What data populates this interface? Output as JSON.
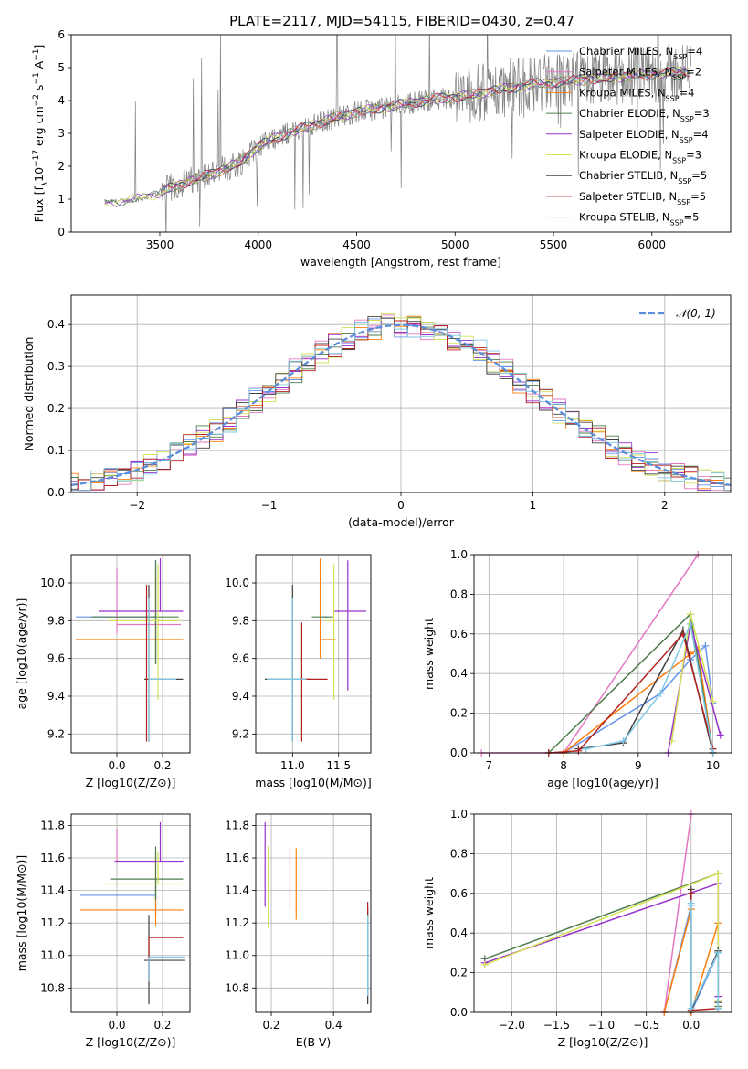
{
  "figure": {
    "title": "PLATE=2117, MJD=54115, FIBERID=0430, z=0.47"
  },
  "colors": {
    "Chabrier MILES": "#6495ed",
    "Salpeter MILES": "#e377c2",
    "Kroupa MILES": "#ff7f0e",
    "Chabrier ELODIE": "#4d7c4d",
    "Salpeter ELODIE": "#9932cc",
    "Kroupa ELODIE": "#d4e157",
    "Chabrier STELIB": "#404040",
    "Salpeter STELIB": "#b22222",
    "Kroupa STELIB": "#7ec8e3",
    "data_spectrum": "#808080",
    "gaussian": "#5b8dd9"
  },
  "chart_data": [
    {
      "id": "spectrum",
      "type": "line",
      "title": "PLATE=2117, MJD=54115, FIBERID=0430, z=0.47",
      "xlabel": "wavelength [Angstrom, rest frame]",
      "ylabel": "Flux [f_λ 10^-17 erg cm^-2 s^-1 A^-1]",
      "xlim": [
        3050,
        6400
      ],
      "ylim": [
        0,
        6
      ],
      "xticks": [
        3500,
        4000,
        4500,
        5000,
        5500,
        6000
      ],
      "yticks": [
        0,
        1,
        2,
        3,
        4,
        5,
        6
      ],
      "grid": false,
      "legend_position": "top-right",
      "legend": [
        {
          "label": "Chabrier MILES, N",
          "sub": "SSP",
          "value": "=4"
        },
        {
          "label": "Salpeter MILES, N",
          "sub": "SSP",
          "value": "=2"
        },
        {
          "label": "Kroupa MILES, N",
          "sub": "SSP",
          "value": "=4"
        },
        {
          "label": "Chabrier ELODIE, N",
          "sub": "SSP",
          "value": "=3"
        },
        {
          "label": "Salpeter ELODIE, N",
          "sub": "SSP",
          "value": "=4"
        },
        {
          "label": "Kroupa ELODIE, N",
          "sub": "SSP",
          "value": "=3"
        },
        {
          "label": "Chabrier STELIB, N",
          "sub": "SSP",
          "value": "=5"
        },
        {
          "label": "Salpeter STELIB, N",
          "sub": "SSP",
          "value": "=5"
        },
        {
          "label": "Kroupa STELIB, N",
          "sub": "SSP",
          "value": "=5"
        }
      ],
      "continuum": {
        "x": [
          3220,
          3300,
          3400,
          3500,
          3600,
          3700,
          3800,
          3900,
          4000,
          4100,
          4200,
          4300,
          4400,
          4500,
          4600,
          4700,
          4800,
          4900,
          5000,
          5100,
          5200,
          5300,
          5400,
          5500,
          5600,
          5700,
          5800,
          5900,
          6000,
          6100,
          6200
        ],
        "y": [
          0.9,
          0.95,
          1.0,
          1.2,
          1.45,
          1.65,
          1.85,
          2.1,
          2.6,
          2.9,
          3.1,
          3.3,
          3.5,
          3.65,
          3.75,
          3.85,
          3.95,
          4.05,
          4.1,
          4.2,
          4.3,
          4.4,
          4.5,
          4.55,
          4.6,
          4.65,
          4.7,
          4.75,
          4.8,
          4.85,
          4.9
        ]
      },
      "spectrum_noise_amplitude": 0.35
    },
    {
      "id": "residuals",
      "type": "line",
      "xlabel": "(data-model)/error",
      "ylabel": "Normed distribution",
      "xlim": [
        -2.5,
        2.5
      ],
      "ylim": [
        0,
        0.47
      ],
      "xticks": [
        -2,
        -1,
        0,
        1,
        2
      ],
      "yticks": [
        0.0,
        0.1,
        0.2,
        0.3,
        0.4
      ],
      "grid": true,
      "legend_position": "top-right",
      "legend": [
        {
          "label": "𝒩(0, 1)"
        }
      ],
      "histogram_bin_width": 0.1,
      "histogram_series_count": 9
    },
    {
      "id": "age_vs_Z",
      "type": "scatter",
      "xlabel": "Z [log10(Z/Z⊙)]",
      "ylabel": "age  [log10(age/yr)]",
      "xlim": [
        -0.2,
        0.32
      ],
      "ylim": [
        9.1,
        10.15
      ],
      "xticks": [
        0.0,
        0.2
      ],
      "yticks": [
        9.2,
        9.4,
        9.6,
        9.8,
        10.0
      ],
      "grid": true,
      "points": [
        {
          "model": "Chabrier MILES",
          "x": 0.17,
          "xerr": [
            0.35,
            0.0
          ],
          "y": 9.82,
          "yerr": [
            0.25,
            0.3
          ]
        },
        {
          "model": "Salpeter MILES",
          "x": 0.0,
          "xerr": [
            0.0,
            0.28
          ],
          "y": 9.78,
          "yerr": [
            0.05,
            0.3
          ]
        },
        {
          "model": "Kroupa MILES",
          "x": 0.17,
          "xerr": [
            0.35,
            0.12
          ],
          "y": 9.7,
          "yerr": [
            0.1,
            0.35
          ]
        },
        {
          "model": "Chabrier ELODIE",
          "x": 0.17,
          "xerr": [
            0.28,
            0.1
          ],
          "y": 9.82,
          "yerr": [
            0.25,
            0.3
          ]
        },
        {
          "model": "Salpeter ELODIE",
          "x": 0.19,
          "xerr": [
            0.27,
            0.1
          ],
          "y": 9.85,
          "yerr": [
            0.0,
            0.28
          ]
        },
        {
          "model": "Kroupa ELODIE",
          "x": 0.18,
          "xerr": [
            0.22,
            0.1
          ],
          "y": 9.8,
          "yerr": [
            0.42,
            0.3
          ]
        },
        {
          "model": "Chabrier STELIB",
          "x": 0.14,
          "xerr": [
            0.02,
            0.15
          ],
          "y": 9.49,
          "yerr": [
            0.33,
            0.5
          ]
        },
        {
          "model": "Salpeter STELIB",
          "x": 0.13,
          "xerr": [
            0.0,
            0.02
          ],
          "y": 9.49,
          "yerr": [
            0.33,
            0.5
          ]
        },
        {
          "model": "Kroupa STELIB",
          "x": 0.14,
          "xerr": [
            0.0,
            0.12
          ],
          "y": 9.49,
          "yerr": [
            0.33,
            0.43
          ]
        }
      ]
    },
    {
      "id": "age_vs_mass",
      "type": "scatter",
      "xlabel": "mass [log10(M/M⊙)]",
      "ylabel": "",
      "xlim": [
        10.6,
        11.85
      ],
      "ylim": [
        9.1,
        10.15
      ],
      "xticks": [
        11.0,
        11.5
      ],
      "yticks": [
        9.2,
        9.4,
        9.6,
        9.8,
        10.0
      ],
      "grid": true,
      "points": [
        {
          "model": "Chabrier MILES",
          "x": 11.38,
          "xerr": [
            0.05,
            0.0
          ],
          "y": 9.82,
          "yerr": [
            0.0,
            0.0
          ]
        },
        {
          "model": "Salpeter MILES",
          "x": 11.38,
          "xerr": [
            0.0,
            0.0
          ],
          "y": 9.82,
          "yerr": [
            0.0,
            0.0
          ]
        },
        {
          "model": "Kroupa MILES",
          "x": 11.3,
          "xerr": [
            0.0,
            0.17
          ],
          "y": 9.7,
          "yerr": [
            0.1,
            0.43
          ]
        },
        {
          "model": "Chabrier ELODIE",
          "x": 11.38,
          "xerr": [
            0.17,
            0.06
          ],
          "y": 9.82,
          "yerr": [
            0.0,
            0.0
          ]
        },
        {
          "model": "Salpeter ELODIE",
          "x": 11.6,
          "xerr": [
            0.15,
            0.2
          ],
          "y": 9.85,
          "yerr": [
            0.42,
            0.27
          ]
        },
        {
          "model": "Kroupa ELODIE",
          "x": 11.45,
          "xerr": [
            0.1,
            0.0
          ],
          "y": 9.8,
          "yerr": [
            0.42,
            0.3
          ]
        },
        {
          "model": "Chabrier STELIB",
          "x": 11.0,
          "xerr": [
            0.3,
            0.2
          ],
          "y": 9.49,
          "yerr": [
            0.33,
            0.5
          ]
        },
        {
          "model": "Salpeter STELIB",
          "x": 11.1,
          "xerr": [
            0.0,
            0.28
          ],
          "y": 9.49,
          "yerr": [
            0.33,
            0.3
          ]
        },
        {
          "model": "Kroupa STELIB",
          "x": 11.0,
          "xerr": [
            0.28,
            0.15
          ],
          "y": 9.49,
          "yerr": [
            0.33,
            0.43
          ]
        }
      ]
    },
    {
      "id": "mass_weight_vs_age",
      "type": "line",
      "xlabel": "age  [log10(age/yr)]",
      "ylabel": "mass weight",
      "xlim": [
        6.8,
        10.25
      ],
      "ylim": [
        0,
        1.0
      ],
      "xticks": [
        7,
        8,
        9,
        10
      ],
      "yticks": [
        0.0,
        0.2,
        0.4,
        0.6,
        0.8,
        1.0
      ],
      "grid": true,
      "series": [
        {
          "model": "Chabrier MILES",
          "x": [
            8.0,
            9.3,
            9.7,
            9.9,
            10.0
          ],
          "y": [
            0.0,
            0.3,
            0.47,
            0.54,
            0.25
          ]
        },
        {
          "model": "Salpeter MILES",
          "x": [
            6.9,
            8.0,
            9.8
          ],
          "y": [
            0.0,
            0.0,
            1.0
          ]
        },
        {
          "model": "Kroupa MILES",
          "x": [
            8.0,
            9.7,
            9.8,
            10.0
          ],
          "y": [
            0.0,
            0.5,
            0.52,
            0.0
          ]
        },
        {
          "model": "Chabrier ELODIE",
          "x": [
            7.8,
            9.7,
            10.0
          ],
          "y": [
            0.0,
            0.7,
            0.0
          ]
        },
        {
          "model": "Salpeter ELODIE",
          "x": [
            9.4,
            9.7,
            10.1
          ],
          "y": [
            0.0,
            0.65,
            0.09
          ]
        },
        {
          "model": "Kroupa ELODIE",
          "x": [
            9.45,
            9.7,
            10.0
          ],
          "y": [
            0.06,
            0.7,
            0.26
          ]
        },
        {
          "model": "Chabrier STELIB",
          "x": [
            8.2,
            8.8,
            9.6,
            10.0
          ],
          "y": [
            0.02,
            0.05,
            0.62,
            0.0
          ]
        },
        {
          "model": "Salpeter STELIB",
          "x": [
            7.8,
            8.2,
            9.6,
            10.0
          ],
          "y": [
            0.0,
            0.01,
            0.6,
            0.02
          ]
        },
        {
          "model": "Kroupa STELIB",
          "x": [
            8.3,
            8.8,
            9.3,
            9.7,
            10.0
          ],
          "y": [
            0.02,
            0.06,
            0.3,
            0.65,
            0.0
          ]
        }
      ]
    },
    {
      "id": "mass_vs_Z",
      "type": "scatter",
      "xlabel": "Z [log10(Z/Z⊙)]",
      "ylabel": "mass [log10(M/M⊙)]",
      "xlim": [
        -0.2,
        0.32
      ],
      "ylim": [
        10.65,
        11.87
      ],
      "xticks": [
        0.0,
        0.2
      ],
      "yticks": [
        10.8,
        11.0,
        11.2,
        11.4,
        11.6,
        11.8
      ],
      "grid": true,
      "points": [
        {
          "model": "Chabrier MILES",
          "x": 0.17,
          "xerr": [
            0.33,
            0.0
          ],
          "y": 11.37,
          "yerr": [
            0.13,
            0.1
          ]
        },
        {
          "model": "Salpeter MILES",
          "x": 0.0,
          "xerr": [
            0.0,
            0.0
          ],
          "y": 11.58,
          "yerr": [
            0.0,
            0.2
          ]
        },
        {
          "model": "Kroupa MILES",
          "x": 0.17,
          "xerr": [
            0.33,
            0.12
          ],
          "y": 11.28,
          "yerr": [
            0.1,
            0.36
          ]
        },
        {
          "model": "Chabrier ELODIE",
          "x": 0.17,
          "xerr": [
            0.2,
            0.12
          ],
          "y": 11.47,
          "yerr": [
            0.13,
            0.2
          ]
        },
        {
          "model": "Salpeter ELODIE",
          "x": 0.19,
          "xerr": [
            0.2,
            0.1
          ],
          "y": 11.58,
          "yerr": [
            0.0,
            0.24
          ]
        },
        {
          "model": "Kroupa ELODIE",
          "x": 0.18,
          "xerr": [
            0.23,
            0.1
          ],
          "y": 11.44,
          "yerr": [
            0.0,
            0.2
          ]
        },
        {
          "model": "Chabrier STELIB",
          "x": 0.14,
          "xerr": [
            0.02,
            0.16
          ],
          "y": 10.97,
          "yerr": [
            0.27,
            0.28
          ]
        },
        {
          "model": "Salpeter STELIB",
          "x": 0.14,
          "xerr": [
            0.0,
            0.15
          ],
          "y": 11.11,
          "yerr": [
            0.27,
            0.0
          ]
        },
        {
          "model": "Kroupa STELIB",
          "x": 0.14,
          "xerr": [
            0.0,
            0.16
          ],
          "y": 10.99,
          "yerr": [
            0.15,
            0.0
          ]
        }
      ]
    },
    {
      "id": "mass_vs_ebv",
      "type": "scatter",
      "xlabel": "E(B-V)",
      "ylabel": "",
      "xlim": [
        0.15,
        0.52
      ],
      "ylim": [
        10.65,
        11.87
      ],
      "xticks": [
        0.2,
        0.4
      ],
      "yticks": [
        10.8,
        11.0,
        11.2,
        11.4,
        11.6,
        11.8
      ],
      "grid": true,
      "points": [
        {
          "model": "Chabrier MILES",
          "x": 0.51,
          "xerr": [
            0,
            0
          ],
          "y": 11.0,
          "yerr": [
            0.3,
            0.3
          ]
        },
        {
          "model": "Salpeter MILES",
          "x": 0.26,
          "xerr": [
            0,
            0
          ],
          "y": 11.45,
          "yerr": [
            0.15,
            0.22
          ]
        },
        {
          "model": "Kroupa MILES",
          "x": 0.28,
          "xerr": [
            0,
            0
          ],
          "y": 11.44,
          "yerr": [
            0.22,
            0.22
          ]
        },
        {
          "model": "Chabrier ELODIE",
          "x": 0.19,
          "xerr": [
            0,
            0
          ],
          "y": 11.4,
          "yerr": [
            0.22,
            0.27
          ]
        },
        {
          "model": "Salpeter ELODIE",
          "x": 0.18,
          "xerr": [
            0,
            0
          ],
          "y": 11.55,
          "yerr": [
            0.25,
            0.27
          ]
        },
        {
          "model": "Kroupa ELODIE",
          "x": 0.19,
          "xerr": [
            0,
            0
          ],
          "y": 11.42,
          "yerr": [
            0.25,
            0.25
          ]
        },
        {
          "model": "Chabrier STELIB",
          "x": 0.51,
          "xerr": [
            0,
            0
          ],
          "y": 11.0,
          "yerr": [
            0.3,
            0.3
          ]
        },
        {
          "model": "Salpeter STELIB",
          "x": 0.51,
          "xerr": [
            0,
            0
          ],
          "y": 11.25,
          "yerr": [
            0.0,
            0.08
          ]
        },
        {
          "model": "Kroupa STELIB",
          "x": 0.51,
          "xerr": [
            0,
            0
          ],
          "y": 11.0,
          "yerr": [
            0.25,
            0.25
          ]
        }
      ]
    },
    {
      "id": "mass_weight_vs_Z",
      "type": "line",
      "xlabel": "Z [log10(Z/Z⊙)]",
      "ylabel": "mass weight",
      "xlim": [
        -2.42,
        0.45
      ],
      "ylim": [
        0,
        1.0
      ],
      "xticks": [
        -2.0,
        -1.5,
        -1.0,
        -0.5,
        0.0
      ],
      "yticks": [
        0.0,
        0.2,
        0.4,
        0.6,
        0.8,
        1.0
      ],
      "grid": true,
      "series": [
        {
          "model": "Chabrier MILES",
          "x": [
            -0.3,
            0.0,
            0.0,
            0.3
          ],
          "y": [
            0.0,
            0.54,
            0.0,
            0.3
          ]
        },
        {
          "model": "Salpeter MILES",
          "x": [
            -0.3,
            0.0
          ],
          "y": [
            0.0,
            1.0
          ]
        },
        {
          "model": "Kroupa MILES",
          "x": [
            -0.3,
            0.0,
            0.0,
            0.3
          ],
          "y": [
            0.0,
            0.52,
            0.0,
            0.45
          ]
        },
        {
          "model": "Chabrier ELODIE",
          "x": [
            -2.3,
            0.3,
            0.3
          ],
          "y": [
            0.27,
            0.7,
            0.03
          ]
        },
        {
          "model": "Salpeter ELODIE",
          "x": [
            -2.3,
            0.3,
            0.3
          ],
          "y": [
            0.25,
            0.65,
            0.08
          ]
        },
        {
          "model": "Kroupa ELODIE",
          "x": [
            -2.3,
            0.3,
            0.3
          ],
          "y": [
            0.24,
            0.7,
            0.06
          ]
        },
        {
          "model": "Chabrier STELIB",
          "x": [
            0.0,
            0.0,
            0.3,
            0.3
          ],
          "y": [
            0.62,
            0.01,
            0.31,
            0.05
          ]
        },
        {
          "model": "Salpeter STELIB",
          "x": [
            0.0,
            0.0,
            0.3
          ],
          "y": [
            0.6,
            0.01,
            0.02
          ]
        },
        {
          "model": "Kroupa STELIB",
          "x": [
            0.0,
            0.0,
            0.3,
            0.3
          ],
          "y": [
            0.55,
            0.02,
            0.3,
            0.02
          ]
        }
      ]
    }
  ]
}
